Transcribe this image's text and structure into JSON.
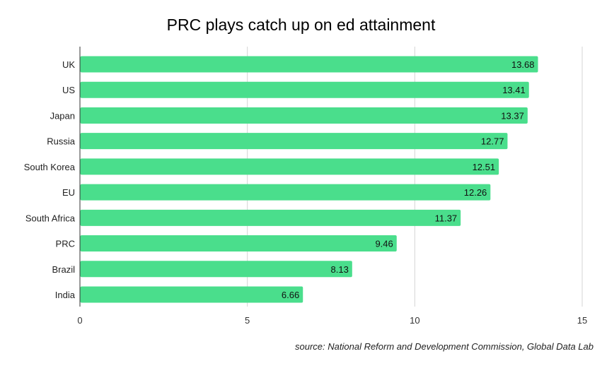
{
  "chart_data": {
    "type": "bar",
    "orientation": "horizontal",
    "title": "PRC plays catch up on ed attainment",
    "xlabel": "",
    "ylabel": "",
    "categories": [
      "UK",
      "US",
      "Japan",
      "Russia",
      "South Korea",
      "EU",
      "South Africa",
      "PRC",
      "Brazil",
      "India"
    ],
    "values": [
      13.68,
      13.41,
      13.37,
      12.77,
      12.51,
      12.26,
      11.37,
      9.46,
      8.13,
      6.66
    ],
    "value_labels": [
      "13.68",
      "13.41",
      "13.37",
      "12.77",
      "12.51",
      "12.26",
      "11.37",
      "9.46",
      "8.13",
      "6.66"
    ],
    "xlim": [
      0,
      15
    ],
    "xticks": [
      0,
      5,
      10,
      15
    ],
    "xtick_labels": [
      "0",
      "5",
      "10",
      "15"
    ],
    "grid": "vertical",
    "legend": "none",
    "bar_color": "#4ade8c",
    "source": "source: National Reform and Development Commission, Global Data Lab"
  }
}
